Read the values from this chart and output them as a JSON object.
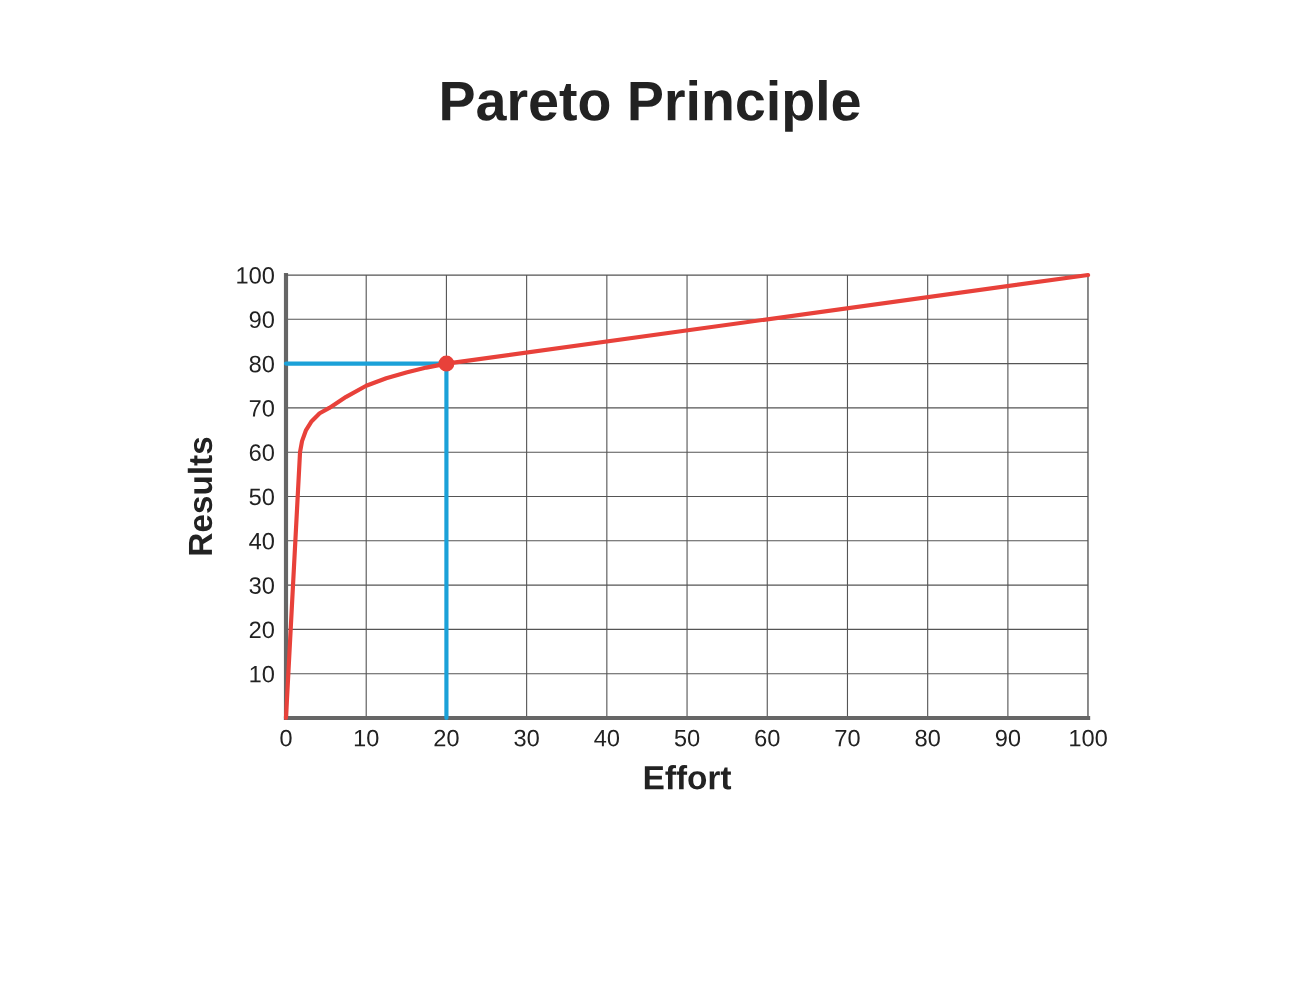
{
  "chart_data": {
    "type": "line",
    "title": "Pareto Principle",
    "xlabel": "Effort",
    "ylabel": "Results",
    "xlim": [
      0,
      100
    ],
    "ylim": [
      0,
      100
    ],
    "xticks": [
      0,
      10,
      20,
      30,
      40,
      50,
      60,
      70,
      80,
      90,
      100
    ],
    "yticks": [
      10,
      20,
      30,
      40,
      50,
      60,
      70,
      80,
      90,
      100
    ],
    "grid": true,
    "series": [
      {
        "color": "#1ba1d8",
        "x": [
          0,
          20,
          20
        ],
        "values": [
          80,
          80,
          0
        ]
      },
      {
        "color": "#e8413a",
        "x": [
          0,
          1.75,
          2,
          2.5,
          3.2,
          4.2,
          5.4,
          7.5,
          10,
          12.5,
          15,
          17.5,
          20,
          100
        ],
        "values": [
          0,
          60,
          62.5,
          65,
          67,
          68.8,
          70,
          72.5,
          75,
          76.7,
          78,
          79.1,
          80,
          100
        ]
      },
      {
        "type": "scatter",
        "color": "#e8413a",
        "marker": "circle",
        "x": [
          20
        ],
        "values": [
          80
        ]
      }
    ]
  }
}
